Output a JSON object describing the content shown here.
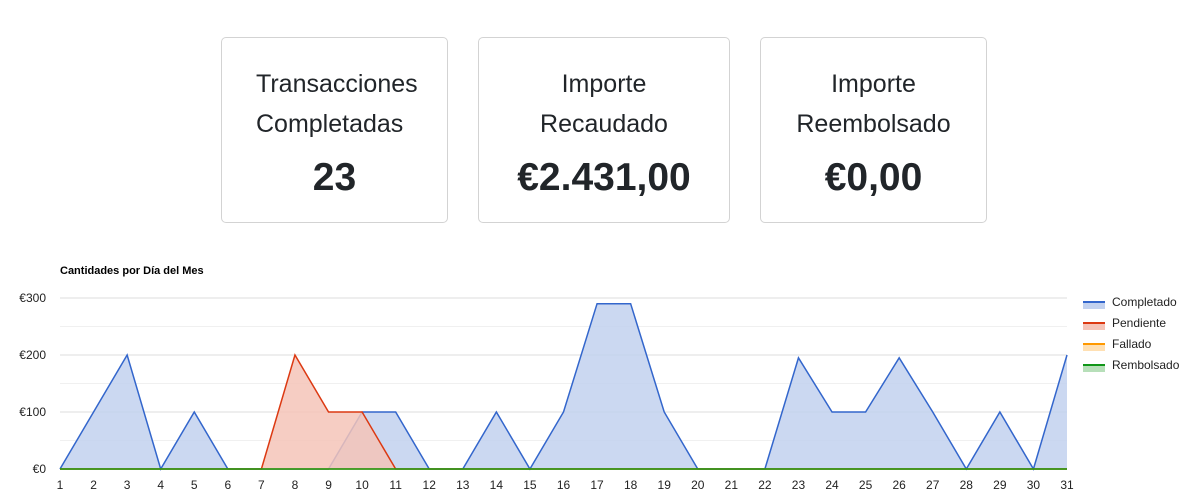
{
  "cards": [
    {
      "label": "Transacciones\nCompletadas",
      "value": "23"
    },
    {
      "label": "Importe\nRecaudado",
      "value": "€2.431,00"
    },
    {
      "label": "Importe\nReembolsado",
      "value": "€0,00"
    }
  ],
  "chart_data": {
    "type": "area",
    "title": "Cantidades por Día del Mes",
    "xlabel": "",
    "ylabel": "",
    "x": [
      1,
      2,
      3,
      4,
      5,
      6,
      7,
      8,
      9,
      10,
      11,
      12,
      13,
      14,
      15,
      16,
      17,
      18,
      19,
      20,
      21,
      22,
      23,
      24,
      25,
      26,
      27,
      28,
      29,
      30,
      31
    ],
    "ylim": [
      0,
      300
    ],
    "yticks": [
      0,
      100,
      200,
      300
    ],
    "ytick_labels": [
      "€0",
      "€100",
      "€200",
      "€300"
    ],
    "grid": true,
    "legend_position": "right",
    "series": [
      {
        "name": "Completado",
        "color": "#3366cc",
        "fill": "#c2d1ef",
        "values": [
          0,
          100,
          200,
          0,
          100,
          0,
          0,
          0,
          0,
          100,
          100,
          0,
          0,
          100,
          0,
          100,
          290,
          290,
          100,
          0,
          0,
          0,
          195,
          100,
          100,
          195,
          100,
          0,
          100,
          0,
          200
        ]
      },
      {
        "name": "Pendiente",
        "color": "#dc3912",
        "fill": "#f5c4b8",
        "values": [
          0,
          0,
          0,
          0,
          0,
          0,
          0,
          200,
          100,
          100,
          0,
          0,
          0,
          0,
          0,
          0,
          0,
          0,
          0,
          0,
          0,
          0,
          0,
          0,
          0,
          0,
          0,
          0,
          0,
          0,
          0
        ]
      },
      {
        "name": "Fallado",
        "color": "#ff9900",
        "fill": "#ffe0b3",
        "values": [
          0,
          0,
          0,
          0,
          0,
          0,
          0,
          0,
          0,
          0,
          0,
          0,
          0,
          0,
          0,
          0,
          0,
          0,
          0,
          0,
          0,
          0,
          0,
          0,
          0,
          0,
          0,
          0,
          0,
          0,
          0
        ]
      },
      {
        "name": "Rembolsado",
        "color": "#109618",
        "fill": "#b7dfb9",
        "values": [
          0,
          0,
          0,
          0,
          0,
          0,
          0,
          0,
          0,
          0,
          0,
          0,
          0,
          0,
          0,
          0,
          0,
          0,
          0,
          0,
          0,
          0,
          0,
          0,
          0,
          0,
          0,
          0,
          0,
          0,
          0
        ]
      }
    ]
  }
}
